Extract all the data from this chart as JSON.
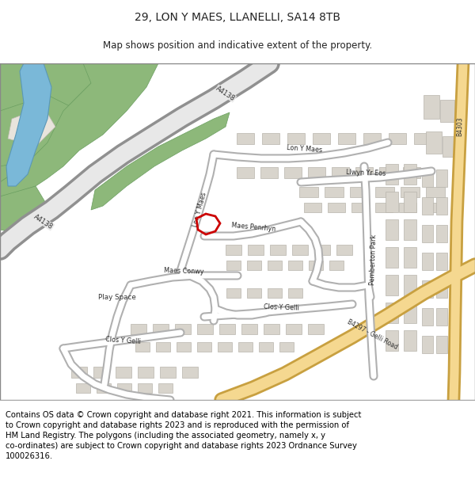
{
  "title": "29, LON Y MAES, LLANELLI, SA14 8TB",
  "subtitle": "Map shows position and indicative extent of the property.",
  "footer": "Contains OS data © Crown copyright and database right 2021. This information is subject\nto Crown copyright and database rights 2023 and is reproduced with the permission of\nHM Land Registry. The polygons (including the associated geometry, namely x, y\nco-ordinates) are subject to Crown copyright and database rights 2023 Ordnance Survey\n100026316.",
  "bg_color": "#f2efe9",
  "green1": "#8db87a",
  "green2": "#6a9e60",
  "green3": "#b8d4a0",
  "blue": "#7ab8d8",
  "road_fill": "#ffffff",
  "road_border": "#b0b0b0",
  "a_road_fill": "#e8e8e8",
  "a_road_border": "#909090",
  "b_road_fill": "#f5d890",
  "b_road_border": "#c8a040",
  "building_fill": "#d8d4cc",
  "building_edge": "#b8b4ac",
  "plot_edge": "#cc0000",
  "text_color": "#222222",
  "title_fs": 10,
  "subtitle_fs": 8.5,
  "footer_fs": 7.2,
  "label_fs": 5.8,
  "road_label_fs": 6.0
}
